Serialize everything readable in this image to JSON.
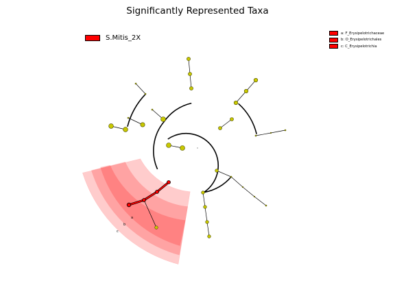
{
  "title": "Significantly Represented Taxa",
  "legend_main": {
    "label": "S.Mitis_2X",
    "color": "#ff0000"
  },
  "taxa_legend": [
    {
      "key": "a",
      "label": "a: F_Erysipelotrichaceae",
      "color": "#ff0000"
    },
    {
      "key": "b",
      "label": "b: O_Erysipelotrichales",
      "color": "#ff0000"
    },
    {
      "key": "c",
      "label": "c: C_Erysipelotrichia",
      "color": "#ff0000"
    }
  ],
  "clade_labels": [
    "a",
    "b",
    "c"
  ],
  "colors": {
    "node": "#c8c800",
    "highlight": "#ff0000",
    "line": "#000000"
  }
}
